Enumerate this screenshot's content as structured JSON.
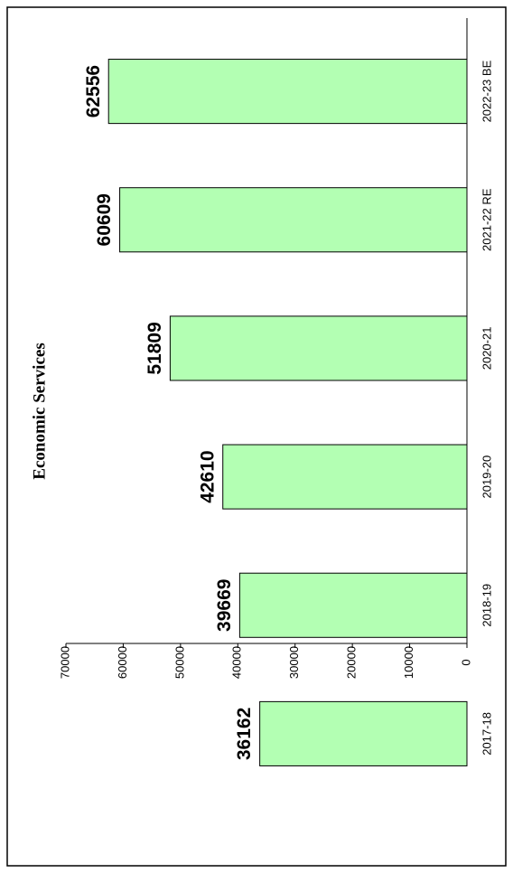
{
  "chart_data": {
    "type": "bar",
    "title": "Economic Services",
    "categories": [
      "2017-18",
      "2018-19",
      "2019-20",
      "2020-21",
      "2021-22 RE",
      "2022-23 BE"
    ],
    "values": [
      36162,
      39669,
      42610,
      51809,
      60609,
      62556
    ],
    "color": "#b3ffb3",
    "ylim": [
      0,
      70000
    ],
    "yticks": [
      0,
      10000,
      20000,
      30000,
      40000,
      50000,
      60000,
      70000
    ]
  }
}
